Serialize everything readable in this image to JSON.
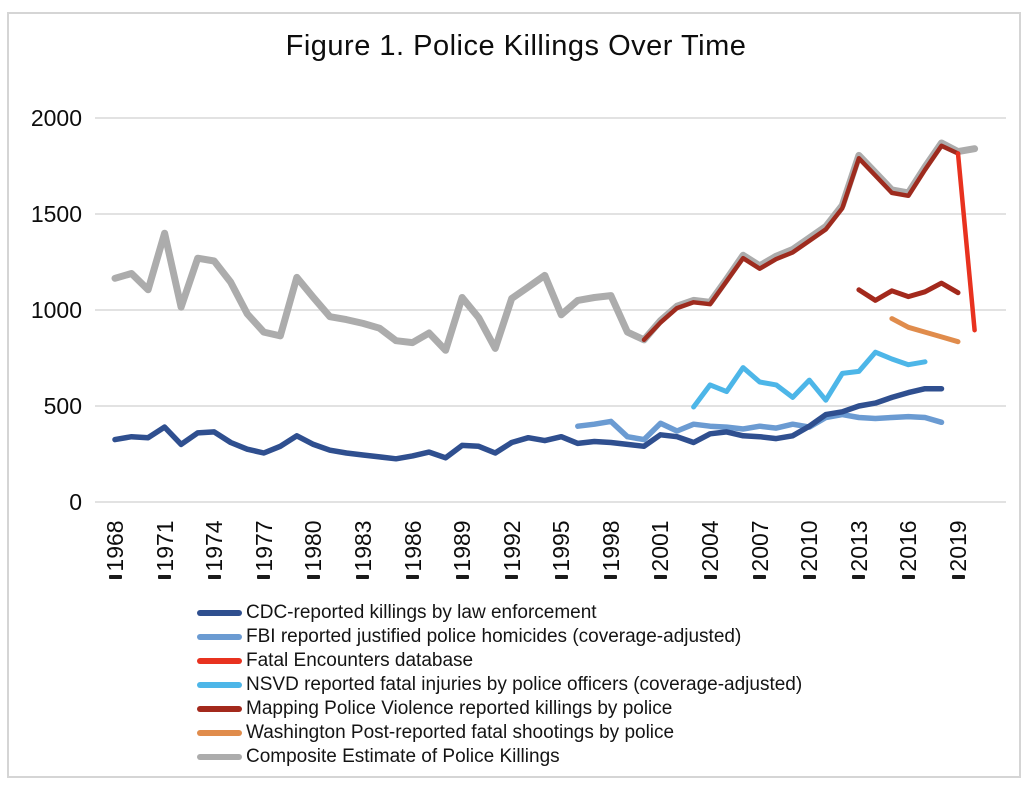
{
  "chart_data": {
    "type": "line",
    "title": "Figure 1. Police Killings Over Time",
    "xlabel": "",
    "ylabel": "",
    "x_axis": {
      "tick_labels": [
        "1968",
        "1971",
        "1974",
        "1977",
        "1980",
        "1983",
        "1986",
        "1989",
        "1992",
        "1995",
        "1998",
        "2001",
        "2004",
        "2007",
        "2010",
        "2013",
        "2016",
        "2019"
      ],
      "tick_years": [
        1968,
        1971,
        1974,
        1977,
        1980,
        1983,
        1986,
        1989,
        1992,
        1995,
        1998,
        2001,
        2004,
        2007,
        2010,
        2013,
        2016,
        2019
      ],
      "range": [
        1966.8,
        2021.5
      ]
    },
    "y_axis": {
      "tick_labels": [
        "0",
        "500",
        "1000",
        "1500",
        "2000"
      ],
      "tick_values": [
        0,
        500,
        1000,
        1500,
        2000
      ],
      "range": [
        0,
        2000
      ]
    },
    "grid": "horizontal",
    "legend_position": "bottom-left",
    "series": [
      {
        "name": "CDC-reported killings by law enforcement",
        "color": "#2f4f8f",
        "stroke_width": 5.5,
        "points": [
          [
            1968,
            325
          ],
          [
            1969,
            340
          ],
          [
            1970,
            335
          ],
          [
            1971,
            390
          ],
          [
            1972,
            300
          ],
          [
            1973,
            360
          ],
          [
            1974,
            365
          ],
          [
            1975,
            310
          ],
          [
            1976,
            275
          ],
          [
            1977,
            255
          ],
          [
            1978,
            290
          ],
          [
            1979,
            345
          ],
          [
            1980,
            300
          ],
          [
            1981,
            270
          ],
          [
            1982,
            255
          ],
          [
            1983,
            245
          ],
          [
            1984,
            235
          ],
          [
            1985,
            225
          ],
          [
            1986,
            240
          ],
          [
            1987,
            260
          ],
          [
            1988,
            230
          ],
          [
            1989,
            295
          ],
          [
            1990,
            290
          ],
          [
            1991,
            255
          ],
          [
            1992,
            310
          ],
          [
            1993,
            335
          ],
          [
            1994,
            320
          ],
          [
            1995,
            340
          ],
          [
            1996,
            305
          ],
          [
            1997,
            315
          ],
          [
            1998,
            310
          ],
          [
            1999,
            300
          ],
          [
            2000,
            290
          ],
          [
            2001,
            350
          ],
          [
            2002,
            340
          ],
          [
            2003,
            310
          ],
          [
            2004,
            355
          ],
          [
            2005,
            365
          ],
          [
            2006,
            345
          ],
          [
            2007,
            340
          ],
          [
            2008,
            330
          ],
          [
            2009,
            345
          ],
          [
            2010,
            395
          ],
          [
            2011,
            455
          ],
          [
            2012,
            470
          ],
          [
            2013,
            500
          ],
          [
            2014,
            515
          ],
          [
            2015,
            545
          ],
          [
            2016,
            570
          ],
          [
            2017,
            590
          ],
          [
            2018,
            590
          ]
        ]
      },
      {
        "name": "FBI reported justified police homicides (coverage-adjusted)",
        "color": "#6b9bd2",
        "stroke_width": 5.5,
        "points": [
          [
            1996,
            395
          ],
          [
            1997,
            405
          ],
          [
            1998,
            420
          ],
          [
            1999,
            340
          ],
          [
            2000,
            325
          ],
          [
            2001,
            410
          ],
          [
            2002,
            370
          ],
          [
            2003,
            405
          ],
          [
            2004,
            395
          ],
          [
            2005,
            390
          ],
          [
            2006,
            380
          ],
          [
            2007,
            395
          ],
          [
            2008,
            385
          ],
          [
            2009,
            405
          ],
          [
            2010,
            390
          ],
          [
            2011,
            440
          ],
          [
            2012,
            455
          ],
          [
            2013,
            440
          ],
          [
            2014,
            435
          ],
          [
            2015,
            440
          ],
          [
            2016,
            445
          ],
          [
            2017,
            440
          ],
          [
            2018,
            415
          ]
        ]
      },
      {
        "name": "Fatal Encounters database",
        "color": "#e8321f",
        "stroke_width": 4.5,
        "segments": [
          {
            "to_year": 2019,
            "color": "#9e2b1e"
          }
        ],
        "points": [
          [
            2000,
            845
          ],
          [
            2001,
            935
          ],
          [
            2002,
            1010
          ],
          [
            2003,
            1040
          ],
          [
            2004,
            1030
          ],
          [
            2005,
            1150
          ],
          [
            2006,
            1270
          ],
          [
            2007,
            1215
          ],
          [
            2008,
            1265
          ],
          [
            2009,
            1300
          ],
          [
            2010,
            1360
          ],
          [
            2011,
            1420
          ],
          [
            2012,
            1530
          ],
          [
            2013,
            1790
          ],
          [
            2014,
            1700
          ],
          [
            2015,
            1610
          ],
          [
            2016,
            1595
          ],
          [
            2017,
            1730
          ],
          [
            2018,
            1855
          ],
          [
            2019,
            1815
          ],
          [
            2020,
            895
          ]
        ]
      },
      {
        "name": "NSVD reported fatal injuries by police officers (coverage-adjusted)",
        "color": "#4db6e8",
        "stroke_width": 5,
        "points": [
          [
            2003,
            495
          ],
          [
            2004,
            610
          ],
          [
            2005,
            575
          ],
          [
            2006,
            700
          ],
          [
            2007,
            625
          ],
          [
            2008,
            610
          ],
          [
            2009,
            545
          ],
          [
            2010,
            635
          ],
          [
            2011,
            530
          ],
          [
            2012,
            670
          ],
          [
            2013,
            680
          ],
          [
            2014,
            780
          ],
          [
            2015,
            745
          ],
          [
            2016,
            715
          ],
          [
            2017,
            730
          ]
        ]
      },
      {
        "name": "Mapping Police Violence reported killings by police",
        "color": "#a3291c",
        "stroke_width": 5,
        "points": [
          [
            2013,
            1105
          ],
          [
            2014,
            1050
          ],
          [
            2015,
            1100
          ],
          [
            2016,
            1070
          ],
          [
            2017,
            1095
          ],
          [
            2018,
            1140
          ],
          [
            2019,
            1090
          ]
        ]
      },
      {
        "name": "Washington Post-reported fatal shootings by police",
        "color": "#e08c4c",
        "stroke_width": 5,
        "points": [
          [
            2015,
            955
          ],
          [
            2016,
            910
          ],
          [
            2017,
            885
          ],
          [
            2018,
            860
          ],
          [
            2019,
            835
          ]
        ]
      },
      {
        "name": "Composite Estimate of Police Killings",
        "color": "#acacac",
        "stroke_width": 7,
        "points": [
          [
            1968,
            1165
          ],
          [
            1969,
            1190
          ],
          [
            1970,
            1105
          ],
          [
            1971,
            1400
          ],
          [
            1972,
            1015
          ],
          [
            1973,
            1270
          ],
          [
            1974,
            1255
          ],
          [
            1975,
            1145
          ],
          [
            1976,
            980
          ],
          [
            1977,
            885
          ],
          [
            1978,
            865
          ],
          [
            1979,
            1170
          ],
          [
            1980,
            1065
          ],
          [
            1981,
            965
          ],
          [
            1982,
            950
          ],
          [
            1983,
            930
          ],
          [
            1984,
            905
          ],
          [
            1985,
            840
          ],
          [
            1986,
            830
          ],
          [
            1987,
            880
          ],
          [
            1988,
            790
          ],
          [
            1989,
            1065
          ],
          [
            1990,
            960
          ],
          [
            1991,
            800
          ],
          [
            1992,
            1060
          ],
          [
            1993,
            1120
          ],
          [
            1994,
            1180
          ],
          [
            1995,
            975
          ],
          [
            1996,
            1050
          ],
          [
            1997,
            1065
          ],
          [
            1998,
            1075
          ],
          [
            1999,
            885
          ],
          [
            2000,
            845
          ],
          [
            2001,
            945
          ],
          [
            2002,
            1020
          ],
          [
            2003,
            1050
          ],
          [
            2004,
            1040
          ],
          [
            2005,
            1160
          ],
          [
            2006,
            1285
          ],
          [
            2007,
            1230
          ],
          [
            2008,
            1280
          ],
          [
            2009,
            1315
          ],
          [
            2010,
            1375
          ],
          [
            2011,
            1435
          ],
          [
            2012,
            1545
          ],
          [
            2013,
            1805
          ],
          [
            2014,
            1715
          ],
          [
            2015,
            1625
          ],
          [
            2016,
            1610
          ],
          [
            2017,
            1745
          ],
          [
            2018,
            1870
          ],
          [
            2019,
            1825
          ],
          [
            2020,
            1840
          ]
        ]
      }
    ],
    "colors": {
      "background": "#ffffff",
      "frame_border": "#d5d5d5",
      "gridline": "#d9d9d9",
      "text": "#0d0d0d",
      "tick_mark": "#1a1a1a"
    }
  }
}
